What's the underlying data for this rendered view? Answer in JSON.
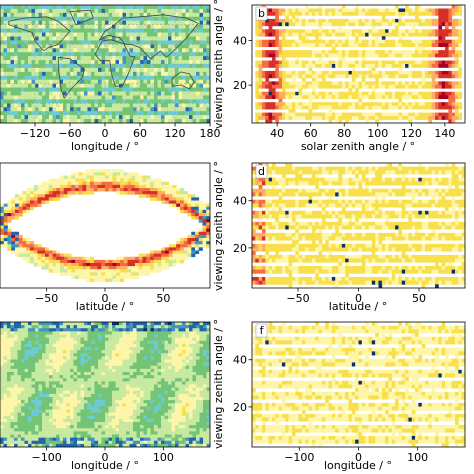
{
  "colors": {
    "colormap": [
      "#08306b",
      "#2166ac",
      "#4393c3",
      "#6ecbd6",
      "#74c476",
      "#c7e9a0",
      "#fdf5a8",
      "#f7e04b",
      "#fdae61",
      "#f46d43",
      "#d73027",
      "#a50026"
    ]
  },
  "chart_data": [
    {
      "id": "a",
      "type": "heatmap",
      "panel_label": "",
      "xlabel": "longitude / °",
      "ylabel": "",
      "xticks": [
        -120,
        -60,
        0,
        60,
        120,
        180
      ],
      "yticks": [],
      "xlim": [
        -180,
        180
      ],
      "ylim": [
        -90,
        90
      ],
      "overlay": "world coastlines, lat/lon grid",
      "pattern": "horizontal stripes of mostly low values (green/cyan) with sparse blue cells"
    },
    {
      "id": "b",
      "type": "heatmap",
      "panel_label": "b",
      "xlabel": "solar zenith angle / °",
      "ylabel": "viewing zenith angle / °",
      "xticks": [
        40,
        60,
        80,
        100,
        120,
        140
      ],
      "yticks": [
        20,
        40
      ],
      "xlim": [
        25,
        152
      ],
      "ylim": [
        3,
        56
      ],
      "pattern": "horizontal stripes; high values (orange/red) near the solar zenith edges ~35 and ~135"
    },
    {
      "id": "c",
      "type": "heatmap",
      "panel_label": "",
      "xlabel": "latitude / °",
      "ylabel": "",
      "xticks": [
        -50,
        0,
        50
      ],
      "yticks": [],
      "xlim": [
        -90,
        90
      ],
      "ylim": [
        0,
        360
      ],
      "pattern": "eye/lens shaped band opening around latitude 0 with red maxima along the band edges"
    },
    {
      "id": "d",
      "type": "heatmap",
      "panel_label": "d",
      "xlabel": "latitude / °",
      "ylabel": "viewing zenith angle / °",
      "xticks": [
        -50,
        0,
        50
      ],
      "yticks": [
        20,
        40
      ],
      "xlim": [
        -88,
        88
      ],
      "ylim": [
        3,
        56
      ],
      "pattern": "horizontal stripes of near-uniform yellow values with sparse dark cells"
    },
    {
      "id": "e",
      "type": "heatmap",
      "panel_label": "",
      "xlabel": "longitude / °",
      "ylabel": "",
      "xticks": [
        -100,
        0,
        100
      ],
      "yticks": [],
      "xlim": [
        -180,
        180
      ],
      "ylim": [
        0,
        360
      ],
      "pattern": "diagonal wave pattern in cyan/green with dark blue cells at top and bottom edges"
    },
    {
      "id": "f",
      "type": "heatmap",
      "panel_label": "f",
      "xlabel": "longitude / °",
      "ylabel": "viewing zenith angle / °",
      "xticks": [
        -100,
        0,
        100
      ],
      "yticks": [
        20,
        40
      ],
      "xlim": [
        -180,
        180
      ],
      "ylim": [
        3,
        56
      ],
      "pattern": "horizontal stripes of yellow/green values with a few dark cells"
    }
  ]
}
